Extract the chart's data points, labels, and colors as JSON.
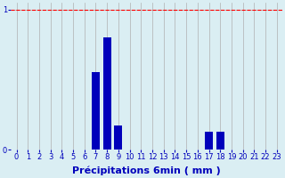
{
  "title": "",
  "xlabel": "Précipitations 6min ( mm )",
  "ylabel": "",
  "background_color": "#daeef3",
  "bar_color": "#0000bb",
  "grid_color": "#b0b0b0",
  "x_labels": [
    "0",
    "1",
    "2",
    "3",
    "4",
    "5",
    "6",
    "7",
    "8",
    "9",
    "10",
    "11",
    "12",
    "13",
    "14",
    "15",
    "16",
    "17",
    "18",
    "19",
    "20",
    "21",
    "22",
    "23"
  ],
  "values": [
    0,
    0,
    0,
    0,
    0,
    0,
    0,
    0.55,
    0.8,
    0.17,
    0,
    0,
    0,
    0,
    0,
    0,
    0,
    0.13,
    0.13,
    0,
    0,
    0,
    0,
    0
  ],
  "ylim": [
    0,
    1.05
  ],
  "yticks": [
    0,
    1
  ],
  "ytick_labels": [
    "0",
    "1"
  ],
  "xlim": [
    -0.5,
    23.5
  ],
  "figsize": [
    3.2,
    2.0
  ],
  "dpi": 100,
  "xlabel_fontsize": 8,
  "tick_fontsize": 6,
  "tick_color": "#0000bb",
  "xlabel_color": "#0000bb",
  "ytick_color": "#0000bb",
  "redline_y": 1.0,
  "bar_width": 0.7
}
